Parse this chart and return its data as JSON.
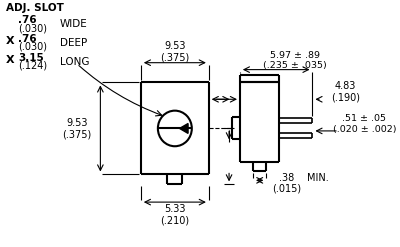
{
  "bg_color": "#ffffff",
  "line_color": "#000000",
  "text_color": "#000000",
  "figsize": [
    4.0,
    2.47
  ],
  "dpi": 100,
  "annotations": {
    "adj_slot": "ADJ. SLOT",
    "dim_953_top": "9.53\n(.375)",
    "dim_953_left": "9.53\n(.375)",
    "dim_533": "5.33\n(.210)",
    "dim_597": "5.97 ± .89\n(.235 ± .035)",
    "dim_483": "4.83\n(.190)",
    "dim_051": ".51 ± .05\n(.020 ± .002)",
    "min_label": "MIN."
  }
}
